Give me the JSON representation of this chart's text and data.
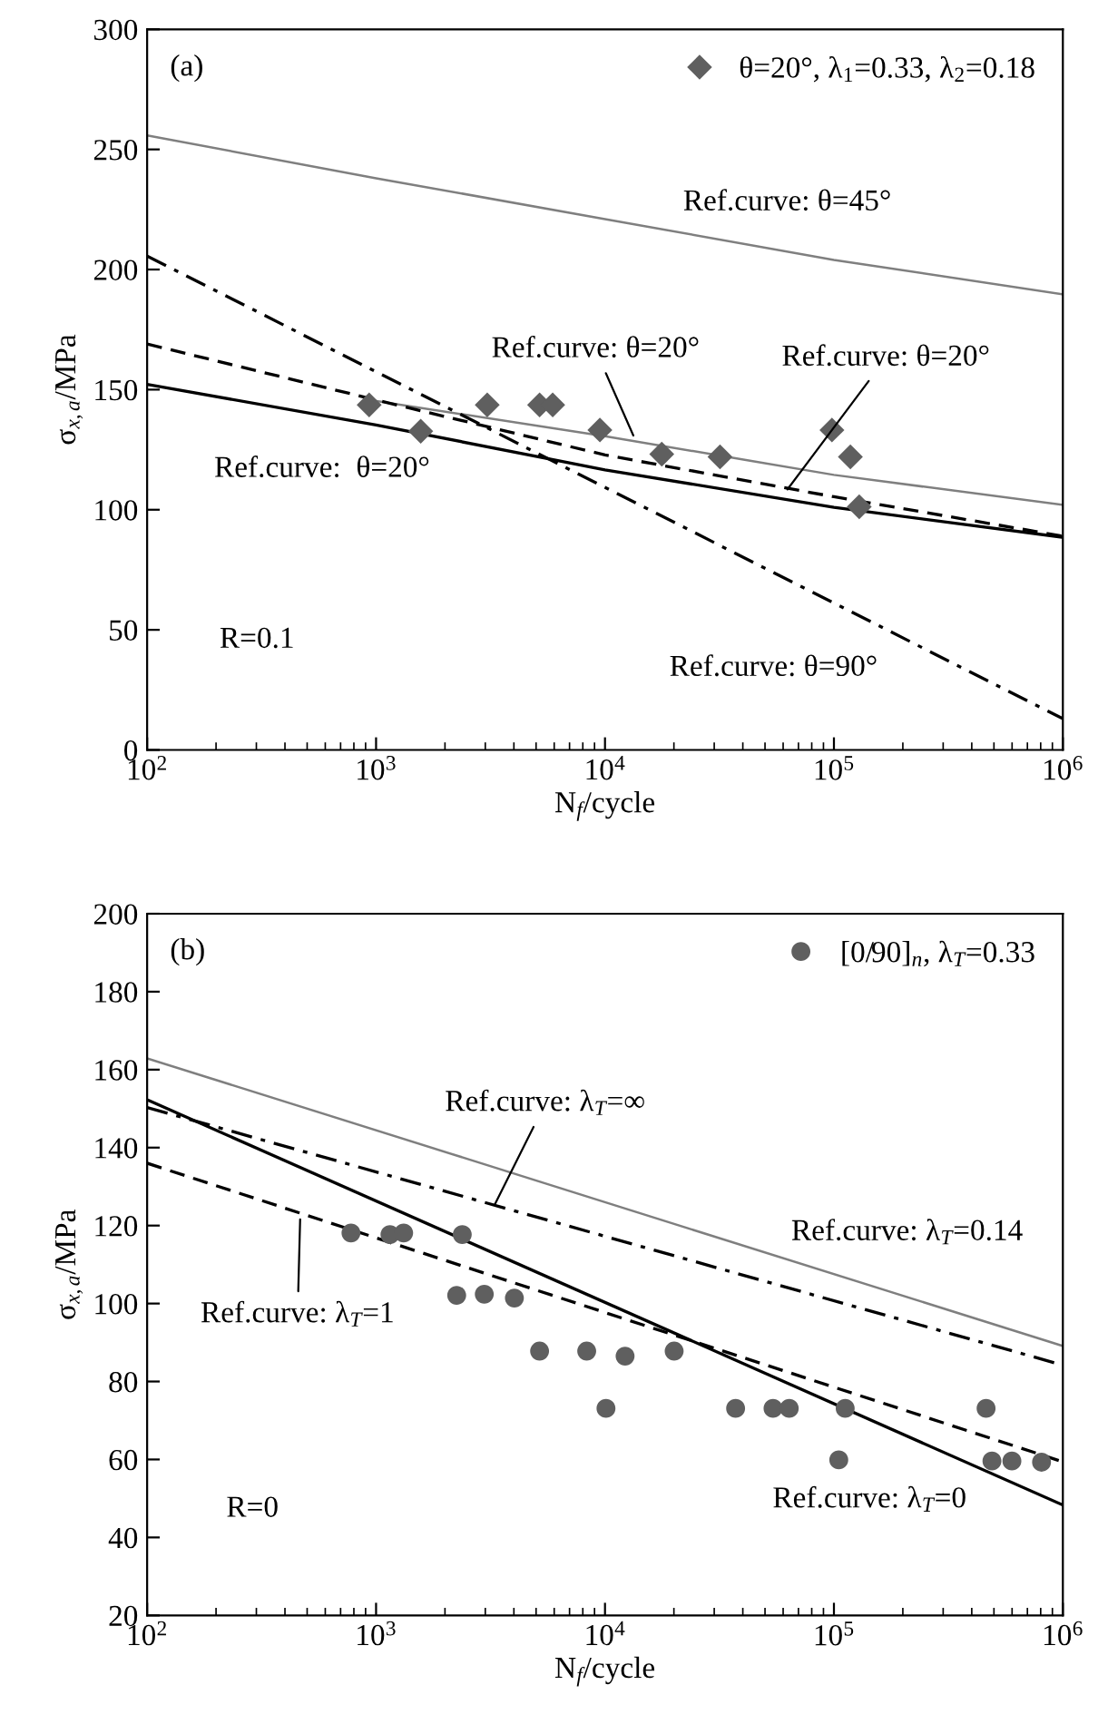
{
  "chart_data": [
    {
      "type": "scatter",
      "xlabel": "N$_{f}$/cycle",
      "ylabel": "σ$_{x,a}$/MPa",
      "log": "x",
      "xlim": [
        100,
        1000000
      ],
      "ylim": [
        0,
        300
      ],
      "xticks": [
        {
          "value": 100,
          "label": "10$^{2}$"
        },
        {
          "value": 1000,
          "label": "10$^{3}$"
        },
        {
          "value": 10000,
          "label": "10$^{4}$"
        },
        {
          "value": 100000,
          "label": "10$^{5}$"
        },
        {
          "value": 1000000,
          "label": "10$^{6}$"
        }
      ],
      "yticks": [
        0,
        50,
        100,
        150,
        200,
        250,
        300
      ],
      "grid": false,
      "legend": "top right",
      "series": [
        {
          "name": "θ=20°, λ$_{1}$=0.33, λ$_{2}$=0.18",
          "marker": "diamond",
          "color": "#5f5f5f",
          "x": [
            933,
            1567,
            3060,
            5180,
            5910,
            9500,
            17700,
            31800,
            98000,
            118000,
            129000
          ],
          "values": [
            143.6,
            132.7,
            143.6,
            143.6,
            143.6,
            133.2,
            123.1,
            122.0,
            133.2,
            122.0,
            101.2
          ]
        },
        {
          "type": "line",
          "color": "#7f7f7f",
          "line_style": "solid",
          "x": [
            100,
            1000,
            10000,
            100000,
            1000000
          ],
          "values": [
            255.8,
            238,
            221,
            204,
            189.7
          ]
        },
        {
          "type": "line",
          "color": "#7f7f7f",
          "line_style": "solid",
          "x": [
            933,
            10000,
            100000,
            1000000
          ],
          "values": [
            145.7,
            130.6,
            114.5,
            102
          ]
        },
        {
          "type": "line",
          "color": "#000000",
          "line_style": "dashed",
          "x": [
            100,
            1000,
            10000,
            100000,
            1000000
          ],
          "values": [
            169,
            145.7,
            122.8,
            105.4,
            89
          ]
        },
        {
          "type": "line",
          "color": "#000000",
          "line_style": "solid",
          "x": [
            100,
            1000,
            10000,
            100000,
            1000000
          ],
          "values": [
            152.2,
            135.3,
            116.6,
            101,
            88.5
          ]
        },
        {
          "type": "line",
          "color": "#000000",
          "line_style": "dashdot",
          "x": [
            100,
            1000000
          ],
          "values": [
            205.6,
            13
          ]
        }
      ],
      "annotations": [
        "(a)",
        "Ref.curve: θ=45°",
        {
          "text": "Ref.curve: θ=20°",
          "x": 13300,
          "y": 130.9
        },
        {
          "text": "Ref.curve: θ=20°",
          "x": 62700,
          "y": 108.5
        },
        "Ref.curve:  θ=20°",
        "R=0.1",
        "Ref.curve: θ=90°"
      ]
    },
    {
      "type": "scatter",
      "xlabel": "N$_{f}$/cycle",
      "ylabel": "σ$_{x,a}$/MPa",
      "log": "x",
      "xlim": [
        100,
        1000000
      ],
      "ylim": [
        20,
        200
      ],
      "xticks": [
        {
          "value": 100,
          "label": "10$^{2}$"
        },
        {
          "value": 1000,
          "label": "10$^{3}$"
        },
        {
          "value": 10000,
          "label": "10$^{4}$"
        },
        {
          "value": 100000,
          "label": "10$^{5}$"
        },
        {
          "value": 1000000,
          "label": "10$^{6}$"
        }
      ],
      "yticks": [
        20,
        40,
        60,
        80,
        100,
        120,
        140,
        160,
        180,
        200
      ],
      "grid": false,
      "legend": "top right",
      "series": [
        {
          "name": "[0/90]$_{n}$, λ$_{T}$=0.33",
          "marker": "circle",
          "color": "#5f5f5f",
          "x": [
            777,
            1150,
            1320,
            2380,
            2250,
            2970,
            4020,
            5180,
            8320,
            12240,
            20050,
            10100,
            37200,
            54200,
            63800,
            112000,
            105000,
            462000,
            490000,
            599000,
            807000
          ],
          "values": [
            118.1,
            117.7,
            118.1,
            117.7,
            102.1,
            102.4,
            101.4,
            87.8,
            87.8,
            86.5,
            87.8,
            73.1,
            73.1,
            73.1,
            73.1,
            73.1,
            59.9,
            73.1,
            59.6,
            59.6,
            59.3
          ]
        },
        {
          "type": "line",
          "color": "#7f7f7f",
          "line_style": "solid",
          "x": [
            100,
            1000000
          ],
          "values": [
            162.9,
            89.1
          ]
        },
        {
          "type": "line",
          "color": "#000000",
          "line_style": "dashdot",
          "x": [
            100,
            1000000
          ],
          "values": [
            150.3,
            84.2
          ]
        },
        {
          "type": "line",
          "color": "#000000",
          "line_style": "solid",
          "x": [
            100,
            1000000
          ],
          "values": [
            152.3,
            48.3
          ]
        },
        {
          "type": "line",
          "color": "#000000",
          "line_style": "dashed",
          "x": [
            100,
            1000000
          ],
          "values": [
            136,
            59.4
          ]
        }
      ],
      "annotations": [
        "(b)",
        {
          "text": "Ref.curve: λ$_{T}$=∞",
          "x": 3300,
          "y": 125.4
        },
        "Ref.curve: λ$_{T}$=0.14",
        {
          "text": "Ref.curve: λ$_{T}$=1",
          "x": 466,
          "y": 121.6
        },
        "Ref.curve: λ$_{T}$=0",
        "R=0"
      ]
    }
  ]
}
